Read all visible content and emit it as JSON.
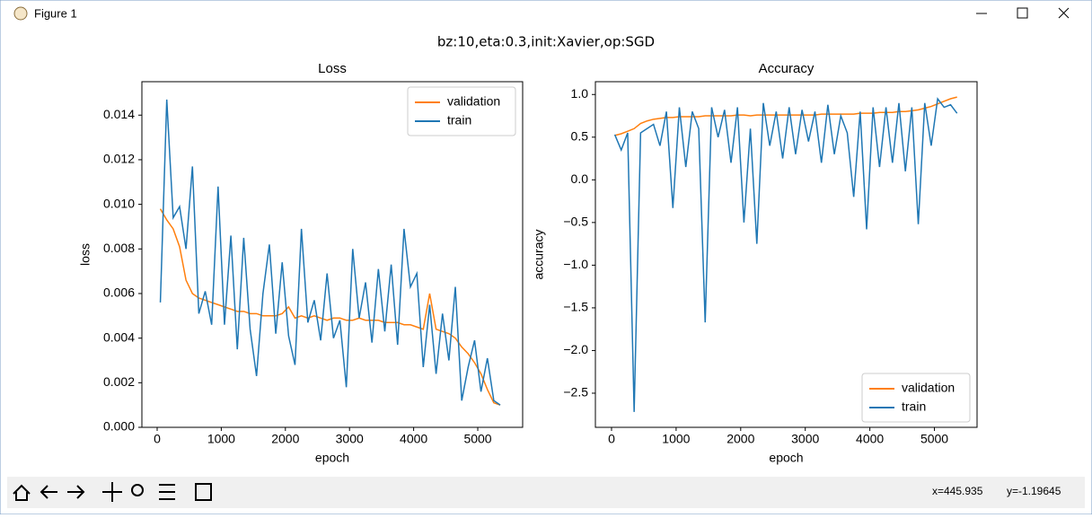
{
  "window": {
    "title": "Figure 1"
  },
  "figure_title": "bz:10,eta:0.3,init:Xavier,op:SGD",
  "status": {
    "x": "x=445.935",
    "y": "y=-1.19645"
  },
  "chart_data": [
    {
      "type": "line",
      "title": "Loss",
      "x_label": "epoch",
      "y_label": "loss",
      "xlim": [
        -238,
        5700
      ],
      "ylim": [
        0,
        0.0155
      ],
      "xticks": [
        0,
        1000,
        2000,
        3000,
        4000,
        5000
      ],
      "yticks": [
        {
          "value": 0,
          "label": "0.000"
        },
        {
          "value": 0.002,
          "label": "0.002"
        },
        {
          "value": 0.004,
          "label": "0.004"
        },
        {
          "value": 0.006,
          "label": "0.006"
        },
        {
          "value": 0.008,
          "label": "0.008"
        },
        {
          "value": 0.01,
          "label": "0.010"
        },
        {
          "value": 0.012,
          "label": "0.012"
        },
        {
          "value": 0.014,
          "label": "0.014"
        }
      ],
      "legend": "upper right",
      "x": [
        50,
        150,
        250,
        350,
        450,
        550,
        650,
        750,
        850,
        950,
        1050,
        1150,
        1250,
        1350,
        1450,
        1550,
        1650,
        1750,
        1850,
        1950,
        2050,
        2150,
        2250,
        2350,
        2450,
        2550,
        2650,
        2750,
        2850,
        2950,
        3050,
        3150,
        3250,
        3350,
        3450,
        3550,
        3650,
        3750,
        3850,
        3950,
        4050,
        4150,
        4250,
        4350,
        4450,
        4550,
        4650,
        4750,
        4850,
        4950,
        5050,
        5150,
        5250,
        5350
      ],
      "series": [
        {
          "name": "validation",
          "color": "#ff7f0e",
          "values": [
            0.0098,
            0.0093,
            0.0089,
            0.0081,
            0.0066,
            0.006,
            0.0058,
            0.0057,
            0.0056,
            0.0055,
            0.0054,
            0.0053,
            0.0052,
            0.0052,
            0.0051,
            0.0051,
            0.005,
            0.005,
            0.005,
            0.0051,
            0.0054,
            0.0049,
            0.005,
            0.0049,
            0.005,
            0.0049,
            0.0048,
            0.0049,
            0.0049,
            0.0048,
            0.0048,
            0.0049,
            0.0048,
            0.0048,
            0.0048,
            0.0047,
            0.0047,
            0.0047,
            0.0046,
            0.0046,
            0.0045,
            0.0044,
            0.006,
            0.0044,
            0.0043,
            0.0042,
            0.004,
            0.0036,
            0.0033,
            0.0029,
            0.0024,
            0.0017,
            0.0011,
            0.001
          ]
        },
        {
          "name": "train",
          "color": "#1f77b4",
          "values": [
            0.0056,
            0.0147,
            0.0094,
            0.0099,
            0.008,
            0.0117,
            0.0051,
            0.0061,
            0.0046,
            0.0108,
            0.0046,
            0.0086,
            0.0035,
            0.0085,
            0.0044,
            0.0023,
            0.006,
            0.0082,
            0.0042,
            0.0074,
            0.0041,
            0.0028,
            0.0089,
            0.0047,
            0.0057,
            0.0039,
            0.0069,
            0.004,
            0.0048,
            0.0018,
            0.008,
            0.0049,
            0.0065,
            0.0038,
            0.0071,
            0.0043,
            0.0073,
            0.0037,
            0.0089,
            0.0063,
            0.0069,
            0.0027,
            0.0055,
            0.0024,
            0.0051,
            0.003,
            0.0063,
            0.0012,
            0.0027,
            0.0039,
            0.0016,
            0.0031,
            0.0012,
            0.001
          ]
        }
      ]
    },
    {
      "type": "line",
      "title": "Accuracy",
      "x_label": "epoch",
      "y_label": "accuracy",
      "xlim": [
        -250,
        5660
      ],
      "ylim": [
        -2.9,
        1.15
      ],
      "xticks": [
        0,
        1000,
        2000,
        3000,
        4000,
        5000
      ],
      "yticks": [
        {
          "value": -2.5,
          "label": "−2.5"
        },
        {
          "value": -2,
          "label": "−2.0"
        },
        {
          "value": -1.5,
          "label": "−1.5"
        },
        {
          "value": -1,
          "label": "−1.0"
        },
        {
          "value": -0.5,
          "label": "−0.5"
        },
        {
          "value": 0,
          "label": "0.0"
        },
        {
          "value": 0.5,
          "label": "0.5"
        },
        {
          "value": 1,
          "label": "1.0"
        }
      ],
      "legend": "lower right",
      "x": [
        50,
        150,
        250,
        350,
        450,
        550,
        650,
        750,
        850,
        950,
        1050,
        1150,
        1250,
        1350,
        1450,
        1550,
        1650,
        1750,
        1850,
        1950,
        2050,
        2150,
        2250,
        2350,
        2450,
        2550,
        2650,
        2750,
        2850,
        2950,
        3050,
        3150,
        3250,
        3350,
        3450,
        3550,
        3650,
        3750,
        3850,
        3950,
        4050,
        4150,
        4250,
        4350,
        4450,
        4550,
        4650,
        4750,
        4850,
        4950,
        5050,
        5150,
        5250,
        5350
      ],
      "series": [
        {
          "name": "validation",
          "color": "#ff7f0e",
          "values": [
            0.52,
            0.54,
            0.57,
            0.6,
            0.66,
            0.69,
            0.71,
            0.72,
            0.73,
            0.73,
            0.74,
            0.74,
            0.74,
            0.74,
            0.75,
            0.75,
            0.75,
            0.75,
            0.75,
            0.76,
            0.76,
            0.75,
            0.76,
            0.76,
            0.76,
            0.76,
            0.76,
            0.76,
            0.76,
            0.76,
            0.76,
            0.76,
            0.77,
            0.77,
            0.77,
            0.77,
            0.77,
            0.77,
            0.78,
            0.78,
            0.78,
            0.79,
            0.79,
            0.79,
            0.8,
            0.8,
            0.81,
            0.82,
            0.84,
            0.86,
            0.89,
            0.92,
            0.95,
            0.97
          ]
        },
        {
          "name": "train",
          "color": "#1f77b4",
          "values": [
            0.53,
            0.35,
            0.55,
            -2.72,
            0.55,
            0.6,
            0.65,
            0.4,
            0.8,
            -0.33,
            0.85,
            0.15,
            0.8,
            0.6,
            -1.67,
            0.85,
            0.5,
            0.82,
            0.2,
            0.85,
            -0.5,
            0.6,
            -0.75,
            0.9,
            0.4,
            0.8,
            0.25,
            0.85,
            0.3,
            0.82,
            0.45,
            0.8,
            0.2,
            0.88,
            0.3,
            0.75,
            0.55,
            -0.2,
            0.8,
            -0.58,
            0.85,
            0.15,
            0.85,
            0.2,
            0.9,
            0.1,
            0.85,
            -0.52,
            0.9,
            0.4,
            0.95,
            0.85,
            0.88,
            0.78
          ]
        }
      ]
    }
  ]
}
